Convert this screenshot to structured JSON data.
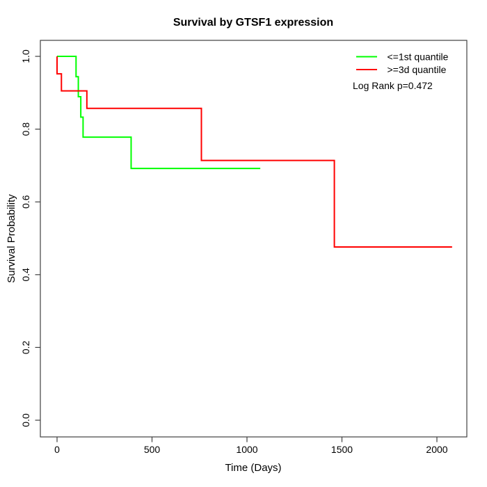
{
  "figure": {
    "background_color": "#ffffff",
    "axis_color": "#404040",
    "text_color": "#000000"
  },
  "chart_data": {
    "type": "line",
    "subtype": "kaplan-meier-step",
    "title": "Survival by GTSF1 expression",
    "xlabel": "Time (Days)",
    "ylabel": "Survival Probability",
    "xlim": [
      0,
      2000
    ],
    "ylim": [
      0.0,
      1.0
    ],
    "x_ticks": [
      0,
      500,
      1000,
      1500,
      2000
    ],
    "y_ticks": [
      "0.0",
      "0.2",
      "0.4",
      "0.6",
      "0.8",
      "1.0"
    ],
    "grid": false,
    "legend_position": "top-right",
    "annotation": "Log Rank p=0.472",
    "series": [
      {
        "name": "<=1st quantile",
        "color": "#00ff00",
        "steps": [
          [
            0,
            1.0
          ],
          [
            100,
            0.944
          ],
          [
            112,
            0.889
          ],
          [
            125,
            0.833
          ],
          [
            137,
            0.778
          ],
          [
            390,
            0.692
          ]
        ],
        "end_x": 1070
      },
      {
        "name": ">=3d quantile",
        "color": "#ff0000",
        "steps": [
          [
            0,
            1.0
          ],
          [
            0,
            0.952
          ],
          [
            23,
            0.905
          ],
          [
            157,
            0.857
          ],
          [
            760,
            0.714
          ],
          [
            1460,
            0.476
          ]
        ],
        "end_x": 2080
      }
    ]
  }
}
